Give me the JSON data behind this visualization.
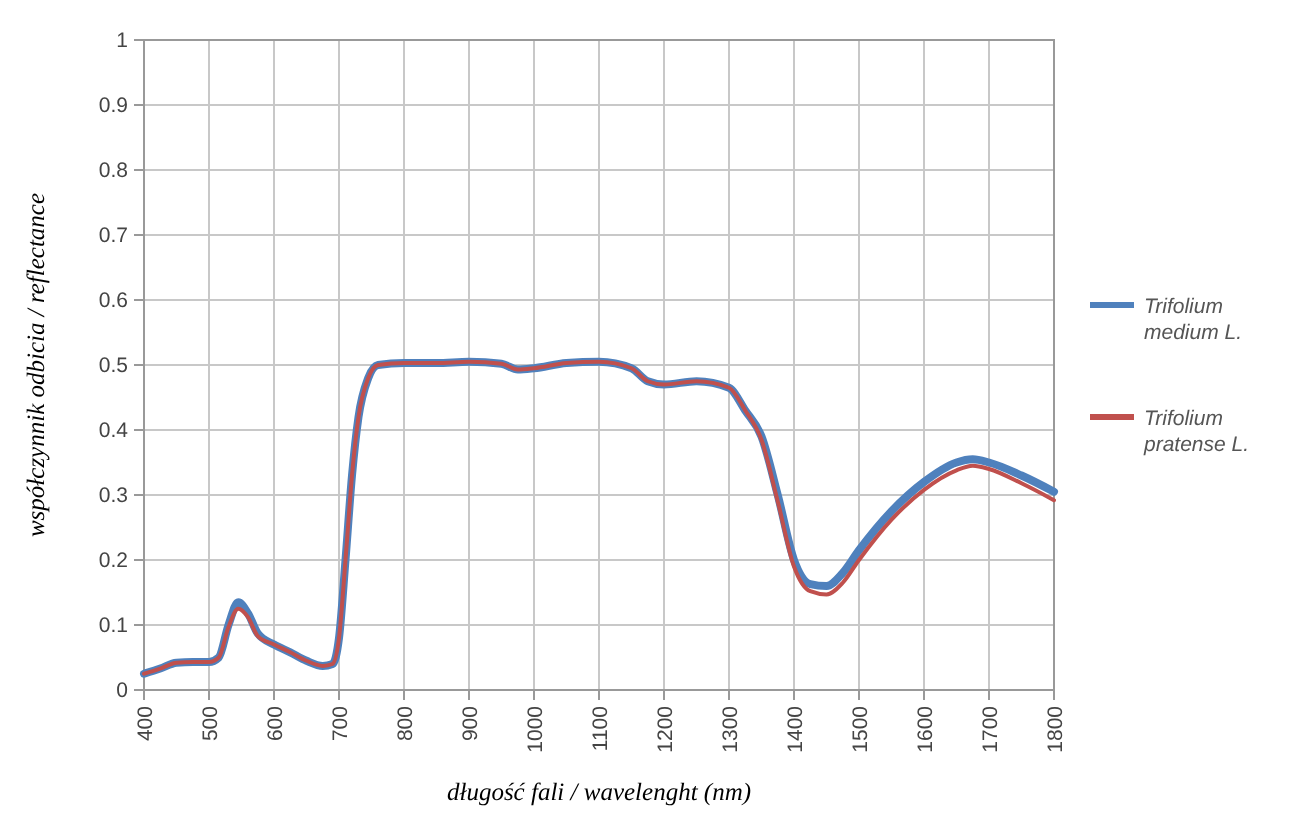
{
  "chart_data": {
    "type": "line",
    "xlabel": "długość fali / wavelenght (nm)",
    "ylabel": "współczynnik odbicia / reflectance",
    "x": [
      400,
      425,
      450,
      475,
      500,
      515,
      530,
      545,
      560,
      575,
      600,
      625,
      650,
      675,
      690,
      700,
      710,
      720,
      730,
      745,
      760,
      800,
      850,
      900,
      950,
      975,
      1000,
      1050,
      1100,
      1150,
      1175,
      1200,
      1250,
      1300,
      1325,
      1350,
      1375,
      1400,
      1425,
      1450,
      1475,
      1500,
      1550,
      1600,
      1650,
      1675,
      1700,
      1750,
      1800
    ],
    "series": [
      {
        "name": "Trifolium medium L.",
        "color": "#4f81bd",
        "values": [
          0.025,
          0.033,
          0.042,
          0.043,
          0.043,
          0.05,
          0.1,
          0.135,
          0.118,
          0.087,
          0.07,
          0.058,
          0.045,
          0.037,
          0.04,
          0.08,
          0.2,
          0.33,
          0.42,
          0.48,
          0.5,
          0.503,
          0.503,
          0.505,
          0.502,
          0.493,
          0.495,
          0.503,
          0.505,
          0.495,
          0.475,
          0.47,
          0.475,
          0.465,
          0.43,
          0.39,
          0.3,
          0.2,
          0.163,
          0.16,
          0.18,
          0.215,
          0.275,
          0.32,
          0.35,
          0.355,
          0.35,
          0.33,
          0.305
        ]
      },
      {
        "name": "Trifolium pratense L.",
        "color": "#c0504d",
        "values": [
          0.025,
          0.033,
          0.042,
          0.043,
          0.043,
          0.05,
          0.097,
          0.125,
          0.112,
          0.083,
          0.07,
          0.058,
          0.045,
          0.037,
          0.04,
          0.08,
          0.2,
          0.33,
          0.42,
          0.48,
          0.5,
          0.503,
          0.503,
          0.505,
          0.502,
          0.493,
          0.495,
          0.503,
          0.505,
          0.495,
          0.475,
          0.47,
          0.475,
          0.465,
          0.43,
          0.385,
          0.29,
          0.19,
          0.152,
          0.147,
          0.165,
          0.2,
          0.262,
          0.308,
          0.338,
          0.345,
          0.34,
          0.318,
          0.292
        ]
      }
    ],
    "xlim": [
      400,
      1800
    ],
    "xticks": [
      400,
      500,
      600,
      700,
      800,
      900,
      1000,
      1100,
      1200,
      1300,
      1400,
      1500,
      1600,
      1700,
      1800
    ],
    "ylim": [
      0,
      1
    ],
    "yticks": [
      0,
      0.1,
      0.2,
      0.3,
      0.4,
      0.5,
      0.6,
      0.7,
      0.8,
      0.9,
      1
    ],
    "grid": true,
    "legend": "right",
    "marker": "none",
    "line_style": "solid"
  }
}
